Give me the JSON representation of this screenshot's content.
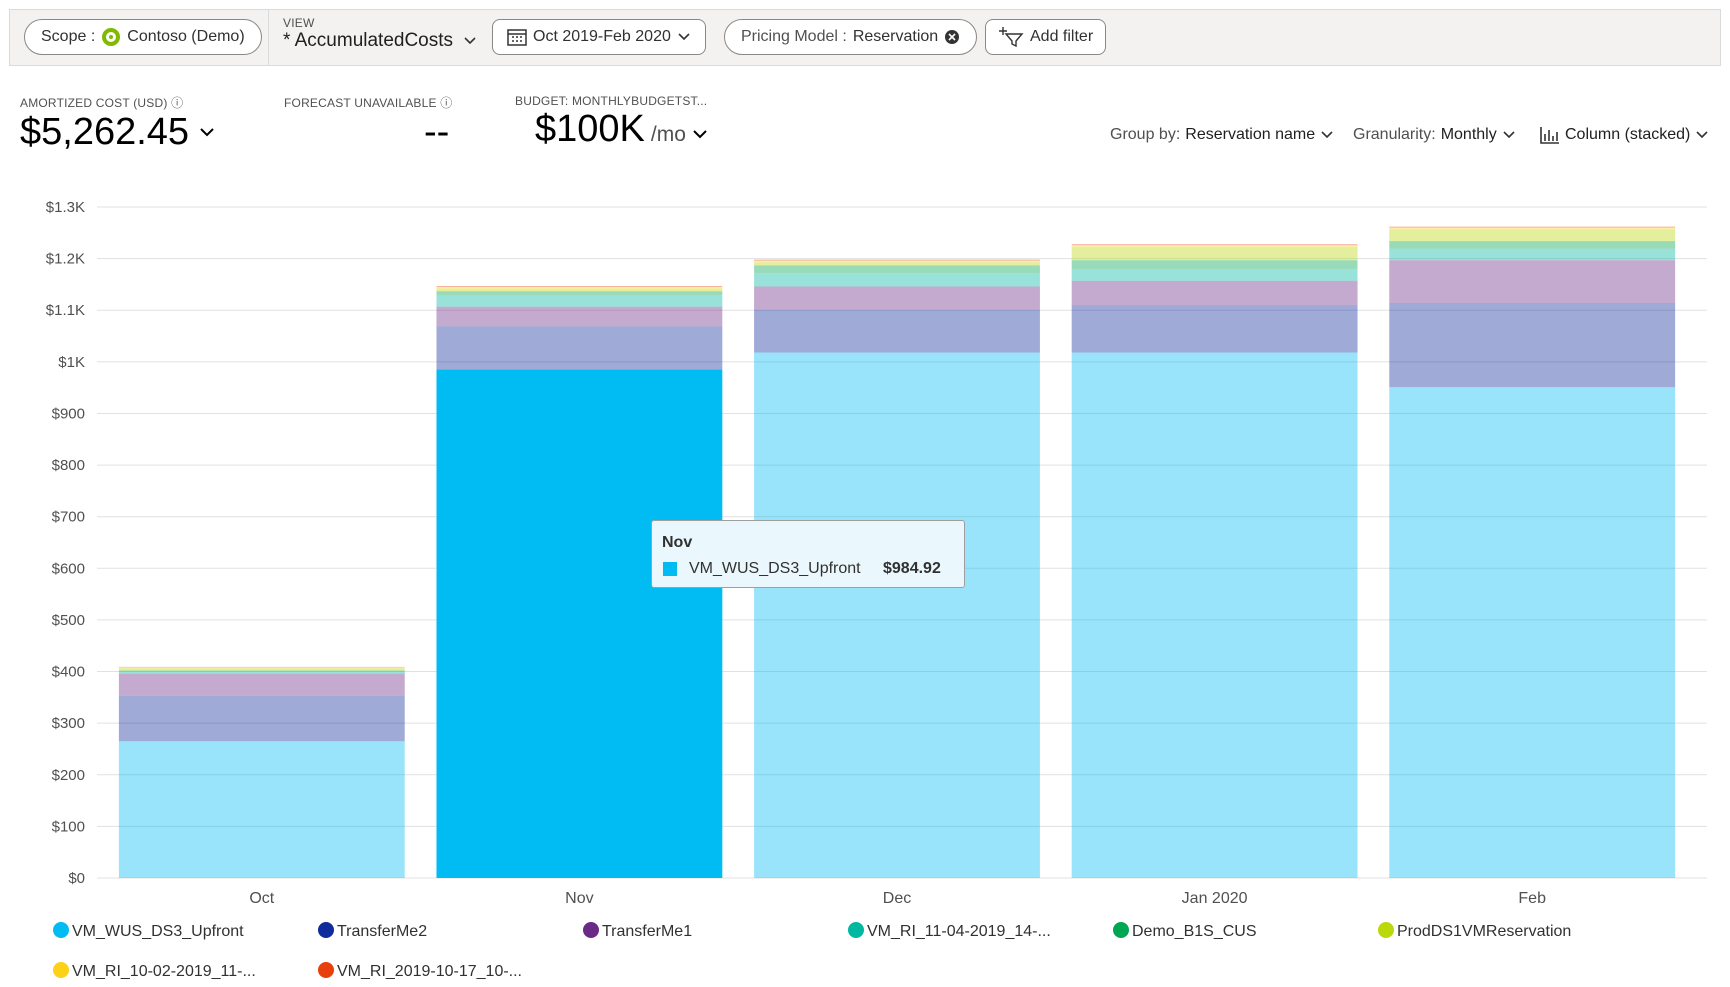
{
  "toolbar": {
    "scope_label": "Scope :",
    "scope": "Contoso (Demo)",
    "view_label": "VIEW",
    "view": "* AccumulatedCosts",
    "date_range": "Oct 2019-Feb 2020",
    "filter_label": "Pricing Model :",
    "filter_value": "Reservation",
    "add_filter": "Add filter"
  },
  "summary": {
    "cost_label": "AMORTIZED COST (USD)",
    "cost": "$5,262.45",
    "forecast_label": "FORECAST UNAVAILABLE",
    "forecast": "--",
    "budget_label": "BUDGET: MONTHLYBUDGETST...",
    "budget": "$100K",
    "budget_unit": "/mo"
  },
  "controls": {
    "group_by_label": "Group by:",
    "group_by": "Reservation name",
    "granularity_label": "Granularity:",
    "granularity": "Monthly",
    "chart_type": "Column (stacked)"
  },
  "chart_data": {
    "type": "stacked_bar",
    "categories": [
      "Oct",
      "Nov",
      "Dec",
      "Jan 2020",
      "Feb"
    ],
    "series": [
      {
        "name": "VM_WUS_DS3_Upfront",
        "color": "#00bcf2",
        "values": [
          265,
          984.92,
          1018,
          1018,
          951
        ]
      },
      {
        "name": "TransferMe2",
        "color": "#0f2b9c",
        "values": [
          88,
          84,
          83,
          92,
          163
        ]
      },
      {
        "name": "TransferMe1",
        "color": "#6b2a86",
        "values": [
          43,
          38,
          45,
          47,
          83
        ]
      },
      {
        "name": "VM_RI_11-04-2019_14-...",
        "color": "#00b7a0",
        "values": [
          4,
          22,
          26,
          23,
          22
        ]
      },
      {
        "name": "Demo_B1S_CUS",
        "color": "#00a651",
        "values": [
          2,
          8,
          15,
          17,
          15
        ]
      },
      {
        "name": "ProdDS1VMReservation",
        "color": "#bad80a",
        "values": [
          4,
          5,
          6,
          26,
          23
        ]
      },
      {
        "name": "VM_RI_10-02-2019_11-...",
        "color": "#fcd116",
        "values": [
          2,
          3,
          3,
          3,
          3
        ]
      },
      {
        "name": "VM_RI_2019-10-17_10-...",
        "color": "#e8400c",
        "values": [
          1,
          2,
          2,
          2,
          2
        ]
      }
    ],
    "ylim": [
      0,
      1300
    ],
    "yticks": [
      {
        "value": 0,
        "label": "$0"
      },
      {
        "value": 100,
        "label": "$100"
      },
      {
        "value": 200,
        "label": "$200"
      },
      {
        "value": 300,
        "label": "$300"
      },
      {
        "value": 400,
        "label": "$400"
      },
      {
        "value": 500,
        "label": "$500"
      },
      {
        "value": 600,
        "label": "$600"
      },
      {
        "value": 700,
        "label": "$700"
      },
      {
        "value": 800,
        "label": "$800"
      },
      {
        "value": 900,
        "label": "$900"
      },
      {
        "value": 1000,
        "label": "$1K"
      },
      {
        "value": 1100,
        "label": "$1.1K"
      },
      {
        "value": 1200,
        "label": "$1.2K"
      },
      {
        "value": 1300,
        "label": "$1.3K"
      }
    ],
    "grid": true,
    "legend": "bottom",
    "tooltip": {
      "category": "Nov",
      "series": "VM_WUS_DS3_Upfront",
      "value": 984.92,
      "value_label": "$984.92"
    }
  }
}
